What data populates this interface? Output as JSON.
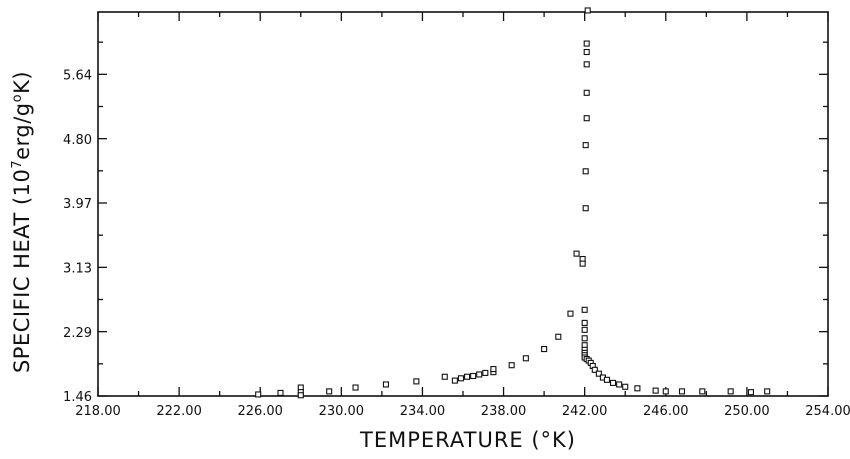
{
  "chart_data": {
    "type": "scatter",
    "xlabel": "TEMPERATURE (°K)",
    "ylabel": {
      "prefix": "SPECIFIC HEAT (10",
      "exp1": "7",
      "mid": "erg/g",
      "exp2": "o",
      "suffix": "K)"
    },
    "xlim": [
      218.0,
      254.0
    ],
    "ylim": [
      1.46,
      6.45
    ],
    "x_ticks": [
      218.0,
      222.0,
      226.0,
      230.0,
      234.0,
      238.0,
      242.0,
      246.0,
      250.0,
      254.0
    ],
    "x_tick_labels": [
      "218.00",
      "222.00",
      "226.00",
      "230.00",
      "234.00",
      "238.00",
      "242.00",
      "246.00",
      "250.00",
      "254.00"
    ],
    "y_ticks": [
      1.46,
      2.29,
      3.13,
      3.97,
      4.8,
      5.64
    ],
    "y_tick_labels": [
      "1.46",
      "2.29",
      "3.13",
      "3.97",
      "4.80",
      "5.64"
    ],
    "marker": "open-square",
    "grid": false,
    "points": [
      [
        225.9,
        1.48
      ],
      [
        227.0,
        1.5
      ],
      [
        228.0,
        1.57
      ],
      [
        228.0,
        1.51
      ],
      [
        228.0,
        1.47
      ],
      [
        229.4,
        1.52
      ],
      [
        230.7,
        1.57
      ],
      [
        232.2,
        1.61
      ],
      [
        233.7,
        1.65
      ],
      [
        235.1,
        1.71
      ],
      [
        235.6,
        1.66
      ],
      [
        235.9,
        1.69
      ],
      [
        236.2,
        1.71
      ],
      [
        236.5,
        1.72
      ],
      [
        236.8,
        1.74
      ],
      [
        237.1,
        1.76
      ],
      [
        237.5,
        1.77
      ],
      [
        237.5,
        1.81
      ],
      [
        238.4,
        1.86
      ],
      [
        239.1,
        1.95
      ],
      [
        240.0,
        2.07
      ],
      [
        240.7,
        2.23
      ],
      [
        241.3,
        2.53
      ],
      [
        241.6,
        3.31
      ],
      [
        241.9,
        3.24
      ],
      [
        241.9,
        3.18
      ],
      [
        242.0,
        2.58
      ],
      [
        242.0,
        2.41
      ],
      [
        242.0,
        2.32
      ],
      [
        242.0,
        2.21
      ],
      [
        242.0,
        2.12
      ],
      [
        242.0,
        2.06
      ],
      [
        242.0,
        2.02
      ],
      [
        242.0,
        1.99
      ],
      [
        242.0,
        1.96
      ],
      [
        242.05,
        3.9
      ],
      [
        242.05,
        4.38
      ],
      [
        242.05,
        4.72
      ],
      [
        242.1,
        5.07
      ],
      [
        242.1,
        5.4
      ],
      [
        242.1,
        5.77
      ],
      [
        242.1,
        5.93
      ],
      [
        242.1,
        6.04
      ],
      [
        242.15,
        6.47
      ],
      [
        242.1,
        1.94
      ],
      [
        242.2,
        1.92
      ],
      [
        242.3,
        1.89
      ],
      [
        242.4,
        1.85
      ],
      [
        242.5,
        1.8
      ],
      [
        242.7,
        1.75
      ],
      [
        242.9,
        1.7
      ],
      [
        243.1,
        1.67
      ],
      [
        243.4,
        1.63
      ],
      [
        243.7,
        1.61
      ],
      [
        244.0,
        1.58
      ],
      [
        244.6,
        1.56
      ],
      [
        245.5,
        1.53
      ],
      [
        246.8,
        1.52
      ],
      [
        246.0,
        1.52
      ],
      [
        247.8,
        1.52
      ],
      [
        249.2,
        1.52
      ],
      [
        250.2,
        1.51
      ],
      [
        251.0,
        1.52
      ]
    ]
  }
}
